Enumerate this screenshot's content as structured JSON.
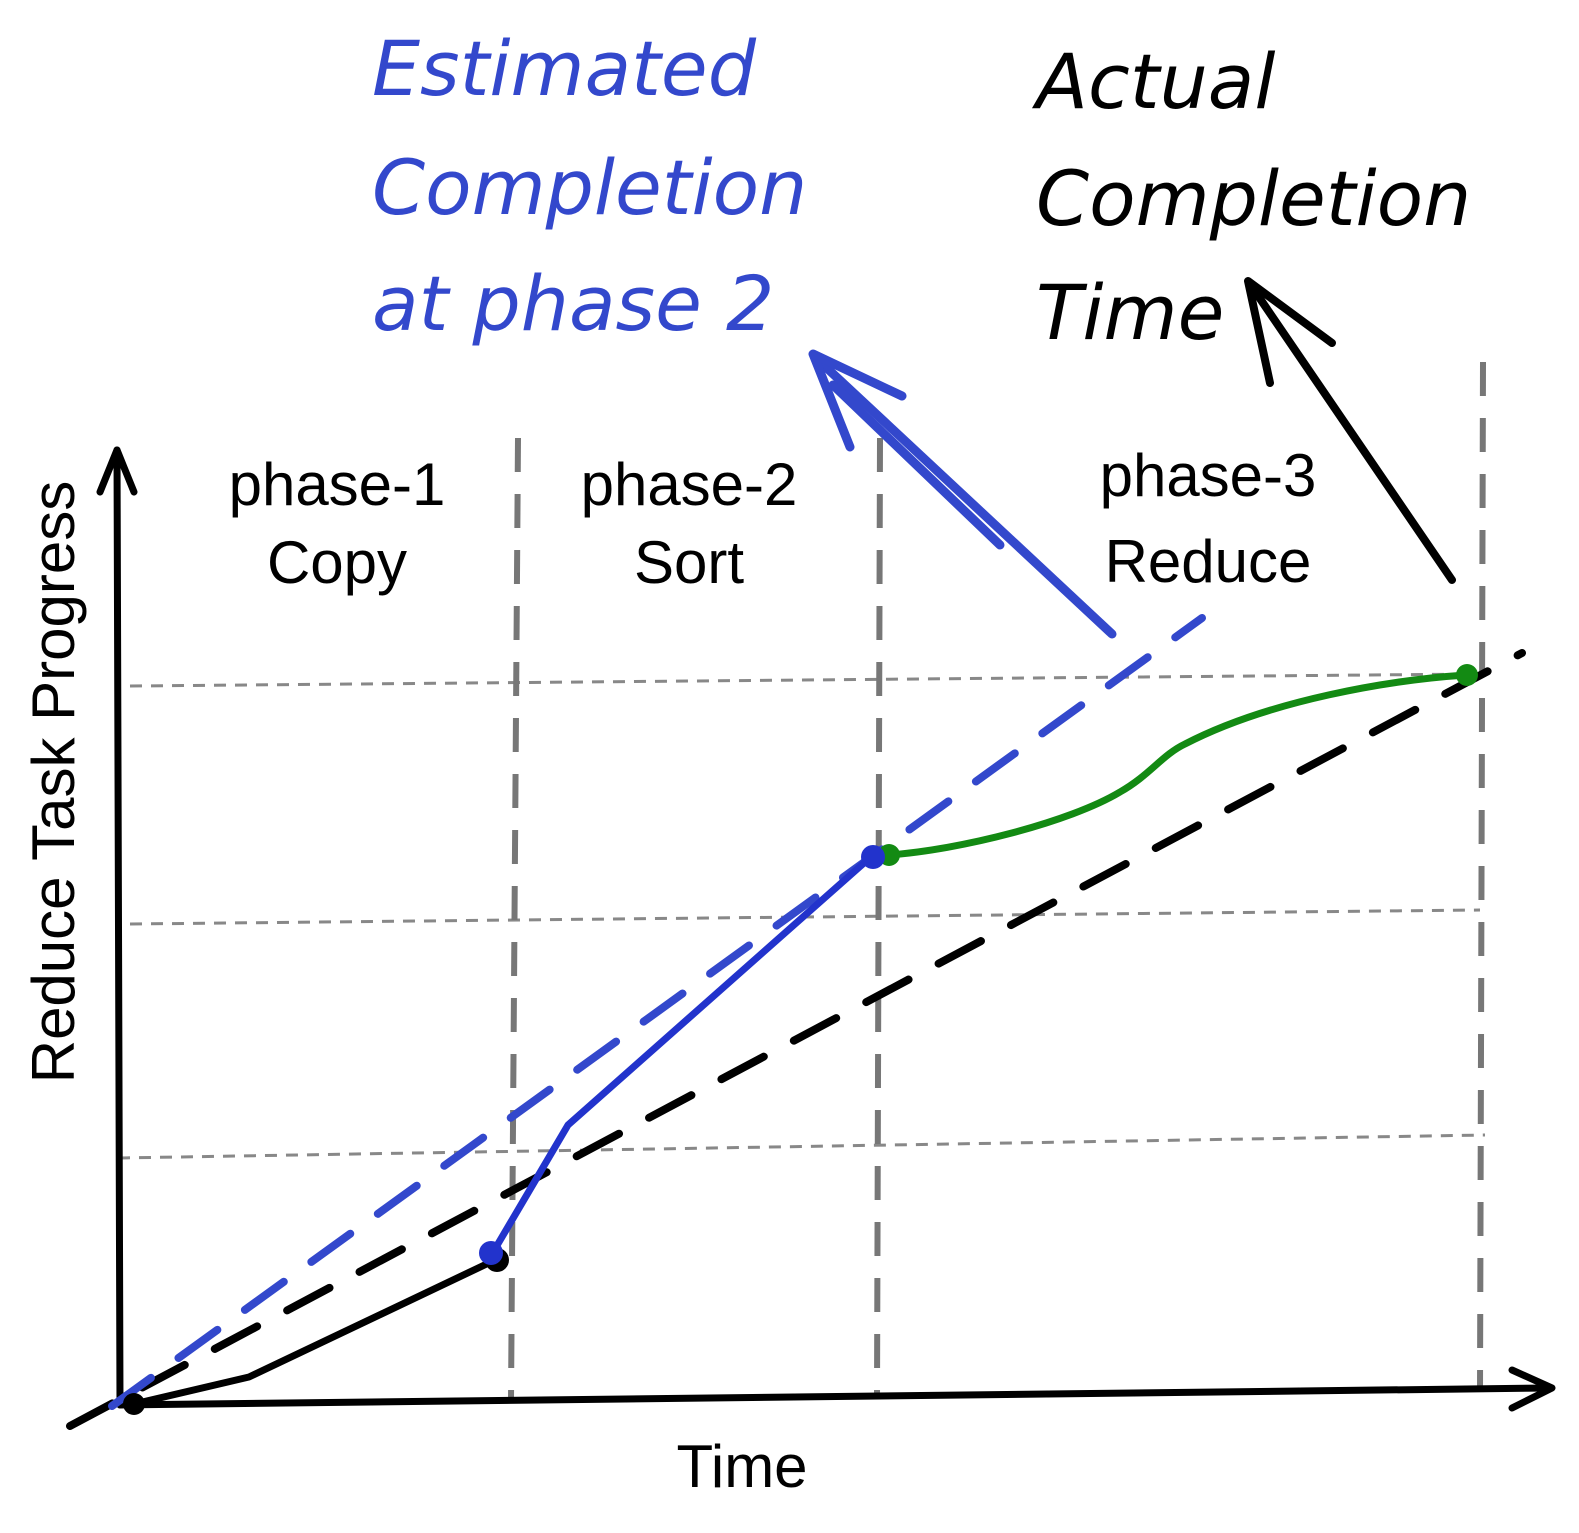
{
  "axes": {
    "x_label": "Time",
    "y_label": "Reduce Task Progress"
  },
  "phases": [
    {
      "name": "phase-1",
      "subtitle": "Copy"
    },
    {
      "name": "phase-2",
      "subtitle": "Sort"
    },
    {
      "name": "phase-3",
      "subtitle": "Reduce"
    }
  ],
  "annotations": {
    "estimated": {
      "lines": [
        "Estimated",
        "Completion",
        "at phase 2"
      ],
      "color": "#3348cc"
    },
    "actual": {
      "lines": [
        "Actual",
        "Completion",
        "Time"
      ],
      "color": "#000000"
    }
  },
  "colors": {
    "axis": "#000000",
    "estimate_phase2": "#2233cc",
    "actual_phase3": "#138a13",
    "grid": "#888888",
    "phase_divider": "#777777"
  }
}
